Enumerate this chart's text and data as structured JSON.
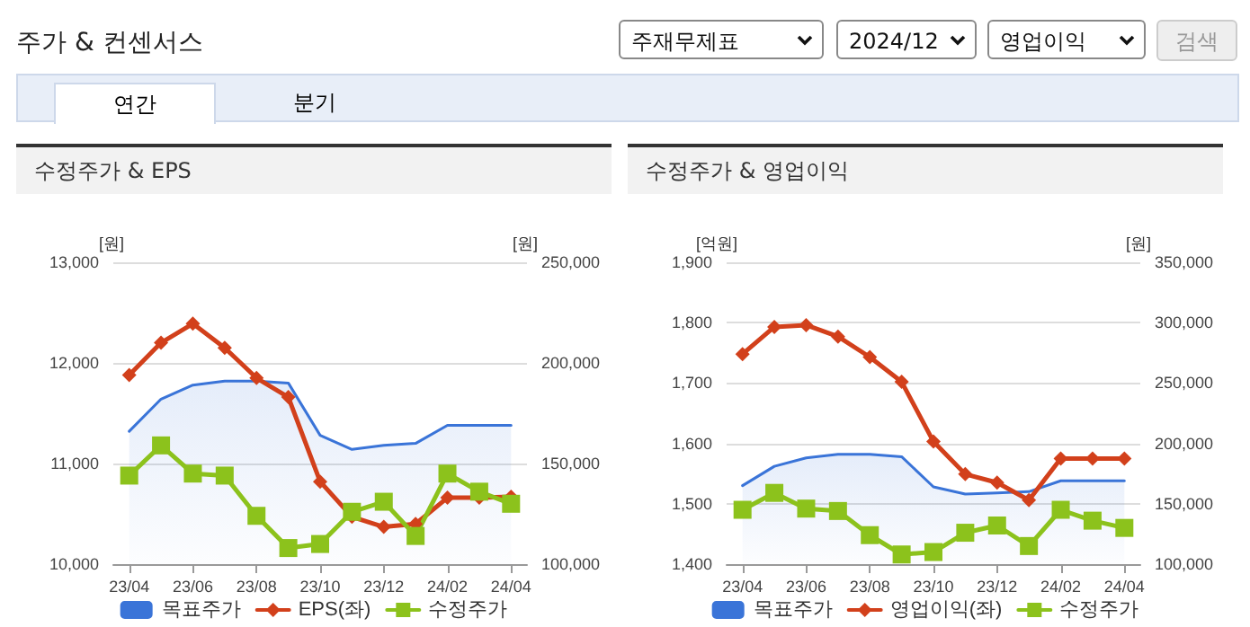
{
  "chart_data": [
    {
      "type": "line",
      "title": "수정주가 & EPS",
      "ylabel": "[원]",
      "y2label": "[원]",
      "annotations": [
        "주가 & 컨센서스",
        "주재무제표",
        "2024/12",
        "영업이익",
        "검색",
        "연간",
        "분기"
      ],
      "categories": [
        "23/04",
        null,
        "23/06",
        null,
        "23/08",
        null,
        "23/10",
        null,
        "23/12",
        null,
        "24/02",
        null,
        "24/04"
      ],
      "series": [
        {
          "name": "목표주가",
          "type": "area",
          "axis": "y2",
          "color": "#3a74d8",
          "marker": "none",
          "values": [
            166000,
            182000,
            189000,
            191000,
            191000,
            190000,
            164000,
            157000,
            159000,
            160000,
            169000,
            169000,
            169000
          ]
        },
        {
          "name": "EPS(좌)",
          "color": "#d2401b",
          "marker": "diamond",
          "values": [
            11880,
            12200,
            12390,
            12150,
            11850,
            11660,
            10820,
            10470,
            10370,
            10400,
            10660,
            10660,
            10670
          ]
        },
        {
          "name": "수정주가",
          "axis": "y2",
          "color": "#8cc21c",
          "marker": "square",
          "values": [
            144000,
            159000,
            145000,
            144000,
            124000,
            108000,
            110000,
            126000,
            131000,
            114000,
            145000,
            136000,
            130000
          ]
        }
      ],
      "ylim": [
        10000,
        13000
      ],
      "yticks": [
        {
          "value": 10000,
          "label": "10,000"
        },
        {
          "value": 11000,
          "label": "11,000"
        },
        {
          "value": 12000,
          "label": "12,000"
        },
        {
          "value": 13000,
          "label": "13,000"
        }
      ],
      "y2lim": [
        100000,
        250000
      ],
      "y2ticks": [
        {
          "value": 100000,
          "label": "100,000"
        },
        {
          "value": 150000,
          "label": "150,000"
        },
        {
          "value": 200000,
          "label": "200,000"
        },
        {
          "value": 250000,
          "label": "250,000"
        }
      ],
      "grid": "y",
      "legend": "bottom"
    },
    {
      "type": "line",
      "title": "수정주가 & 영업이익",
      "ylabel": "[억원]",
      "y2label": "[원]",
      "categories": [
        "23/04",
        null,
        "23/06",
        null,
        "23/08",
        null,
        "23/10",
        null,
        "23/12",
        null,
        "24/02",
        null,
        "24/04"
      ],
      "series": [
        {
          "name": "목표주가",
          "type": "area",
          "axis": "y2",
          "color": "#3a74d8",
          "marker": "none",
          "values": [
            165000,
            181000,
            188000,
            191000,
            191000,
            189000,
            164000,
            158000,
            159000,
            160000,
            169000,
            169000,
            169000
          ]
        },
        {
          "name": "영업이익(좌)",
          "color": "#d2401b",
          "marker": "diamond",
          "values": [
            1748,
            1793,
            1796,
            1777,
            1743,
            1702,
            1603,
            1549,
            1535,
            1506,
            1575,
            1575,
            1575
          ]
        },
        {
          "name": "수정주가",
          "axis": "y2",
          "color": "#8cc21c",
          "marker": "square",
          "values": [
            145000,
            159000,
            146000,
            144000,
            124000,
            108000,
            110000,
            126000,
            132000,
            115000,
            145000,
            136000,
            130000
          ]
        }
      ],
      "ylim": [
        1400,
        1900
      ],
      "yticks": [
        {
          "value": 1400,
          "label": "1,400"
        },
        {
          "value": 1500,
          "label": "1,500"
        },
        {
          "value": 1600,
          "label": "1,600"
        },
        {
          "value": 1700,
          "label": "1,700"
        },
        {
          "value": 1800,
          "label": "1,800"
        },
        {
          "value": 1900,
          "label": "1,900"
        }
      ],
      "y2lim": [
        100000,
        350000
      ],
      "y2ticks": [
        {
          "value": 100000,
          "label": "100,000"
        },
        {
          "value": 150000,
          "label": "150,000"
        },
        {
          "value": 200000,
          "label": "200,000"
        },
        {
          "value": 250000,
          "label": "250,000"
        },
        {
          "value": 300000,
          "label": "300,000"
        },
        {
          "value": 350000,
          "label": "350,000"
        }
      ],
      "grid": "y",
      "legend": "bottom"
    }
  ]
}
